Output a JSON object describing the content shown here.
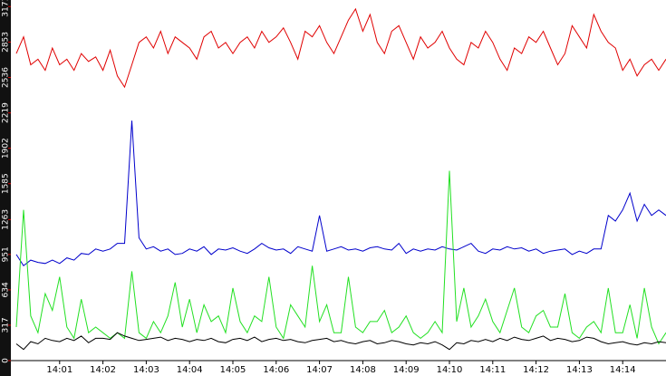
{
  "chart_data": {
    "type": "line",
    "categories": [
      null,
      null,
      null,
      null,
      null,
      null,
      "14:01",
      null,
      null,
      null,
      null,
      null,
      "14:02",
      null,
      null,
      null,
      null,
      null,
      "14:03",
      null,
      null,
      null,
      null,
      null,
      "14:04",
      null,
      null,
      null,
      null,
      null,
      "14:05",
      null,
      null,
      null,
      null,
      null,
      "14:06",
      null,
      null,
      null,
      null,
      null,
      "14:07",
      null,
      null,
      null,
      null,
      null,
      "14:08",
      null,
      null,
      null,
      null,
      null,
      "14:09",
      null,
      null,
      null,
      null,
      null,
      "14:10",
      null,
      null,
      null,
      null,
      null,
      "14:11",
      null,
      null,
      null,
      null,
      null,
      "14:12",
      null,
      null,
      null,
      null,
      null,
      "14:13",
      null,
      null,
      null,
      null,
      null,
      "14:14",
      null,
      null,
      null,
      null,
      null,
      null
    ],
    "ylim": [
      0,
      3230
    ],
    "yticks": [
      0,
      317,
      634,
      951,
      1263,
      1585,
      1902,
      2219,
      2536,
      2853,
      3171
    ],
    "series": [
      {
        "color": "#e00000",
        "values": [
          2750,
          2900,
          2650,
          2700,
          2600,
          2800,
          2650,
          2700,
          2600,
          2750,
          2680,
          2720,
          2600,
          2780,
          2550,
          2450,
          2650,
          2850,
          2900,
          2800,
          2950,
          2750,
          2900,
          2850,
          2800,
          2700,
          2900,
          2950,
          2800,
          2850,
          2750,
          2850,
          2900,
          2800,
          2950,
          2850,
          2900,
          2980,
          2850,
          2700,
          2950,
          2900,
          3000,
          2850,
          2750,
          2900,
          3050,
          3150,
          2950,
          3100,
          2850,
          2750,
          2950,
          3000,
          2850,
          2700,
          2900,
          2800,
          2850,
          2950,
          2800,
          2700,
          2650,
          2850,
          2800,
          2950,
          2850,
          2700,
          2600,
          2800,
          2750,
          2900,
          2850,
          2950,
          2800,
          2650,
          2750,
          3000,
          2900,
          2800,
          3100,
          2950,
          2850,
          2800,
          2600,
          2700,
          2550,
          2650,
          2700,
          2600,
          2700
        ]
      },
      {
        "color": "#0000cc",
        "values": [
          950,
          850,
          900,
          880,
          870,
          900,
          870,
          920,
          900,
          960,
          950,
          1000,
          980,
          1000,
          1050,
          1050,
          2150,
          1100,
          1000,
          1020,
          980,
          1000,
          950,
          960,
          1000,
          980,
          1020,
          950,
          1000,
          990,
          1010,
          980,
          960,
          1000,
          1050,
          1010,
          990,
          1000,
          960,
          1020,
          1000,
          980,
          1300,
          980,
          1000,
          1020,
          990,
          1000,
          980,
          1010,
          1020,
          1000,
          990,
          1050,
          960,
          1000,
          980,
          1000,
          990,
          1020,
          1000,
          990,
          1020,
          1050,
          980,
          960,
          1000,
          990,
          1020,
          1000,
          1010,
          980,
          1000,
          960,
          980,
          990,
          1000,
          950,
          980,
          960,
          1000,
          1000,
          1300,
          1250,
          1350,
          1500,
          1250,
          1400,
          1300,
          1350,
          1300
        ]
      },
      {
        "color": "#22e022",
        "values": [
          300,
          1350,
          400,
          250,
          600,
          450,
          750,
          300,
          200,
          550,
          250,
          300,
          250,
          200,
          250,
          200,
          800,
          250,
          200,
          350,
          250,
          400,
          700,
          300,
          550,
          250,
          500,
          350,
          400,
          250,
          650,
          350,
          250,
          400,
          350,
          750,
          300,
          200,
          500,
          400,
          300,
          850,
          350,
          500,
          250,
          250,
          750,
          300,
          250,
          350,
          350,
          450,
          250,
          300,
          400,
          250,
          200,
          250,
          350,
          250,
          1700,
          350,
          650,
          300,
          400,
          550,
          350,
          250,
          450,
          650,
          300,
          250,
          400,
          450,
          300,
          300,
          600,
          250,
          200,
          300,
          350,
          250,
          650,
          250,
          250,
          500,
          200,
          650,
          300,
          150,
          250
        ]
      },
      {
        "color": "#000000",
        "values": [
          150,
          100,
          170,
          150,
          200,
          180,
          170,
          200,
          180,
          220,
          160,
          200,
          200,
          190,
          250,
          220,
          200,
          180,
          190,
          200,
          210,
          180,
          200,
          190,
          170,
          190,
          180,
          200,
          170,
          160,
          190,
          200,
          180,
          210,
          170,
          190,
          200,
          180,
          190,
          170,
          160,
          180,
          190,
          200,
          170,
          180,
          160,
          150,
          170,
          180,
          150,
          160,
          180,
          170,
          150,
          140,
          160,
          150,
          170,
          140,
          100,
          160,
          150,
          180,
          170,
          190,
          170,
          200,
          180,
          210,
          190,
          180,
          200,
          220,
          180,
          200,
          190,
          170,
          180,
          210,
          200,
          170,
          150,
          160,
          170,
          150,
          140,
          160,
          150,
          170,
          160
        ]
      }
    ]
  }
}
